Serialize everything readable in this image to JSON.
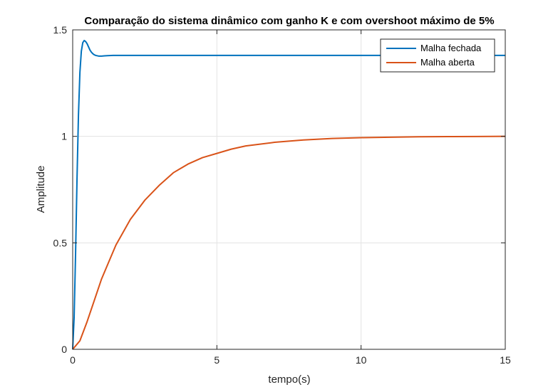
{
  "chart_data": {
    "type": "line",
    "title": "Comparação do sistema dinâmico com ganho K e com overshoot máximo de 5%",
    "xlabel": "tempo(s)",
    "ylabel": "Amplitude",
    "xlim": [
      0,
      15
    ],
    "ylim": [
      0,
      1.5
    ],
    "xticks": [
      0,
      5,
      10,
      15
    ],
    "xtick_labels": [
      "0",
      "5",
      "10",
      "15"
    ],
    "yticks": [
      0,
      0.5,
      1,
      1.5
    ],
    "ytick_labels": [
      "0",
      "0.5",
      "1",
      "1.5"
    ],
    "grid": true,
    "legend_position": "top-right",
    "series": [
      {
        "name": "Malha fechada",
        "color": "#0072BD",
        "x": [
          0,
          0.05,
          0.1,
          0.15,
          0.2,
          0.25,
          0.3,
          0.35,
          0.4,
          0.45,
          0.5,
          0.55,
          0.6,
          0.65,
          0.7,
          0.75,
          0.8,
          0.9,
          1.0,
          1.1,
          1.2,
          1.4,
          1.6,
          1.8,
          2.0,
          3,
          5,
          8,
          10,
          12,
          15
        ],
        "y": [
          0,
          0.15,
          0.45,
          0.8,
          1.1,
          1.3,
          1.4,
          1.44,
          1.45,
          1.445,
          1.435,
          1.42,
          1.405,
          1.395,
          1.388,
          1.383,
          1.38,
          1.377,
          1.377,
          1.378,
          1.379,
          1.38,
          1.38,
          1.38,
          1.38,
          1.38,
          1.38,
          1.38,
          1.38,
          1.38,
          1.38
        ]
      },
      {
        "name": "Malha aberta",
        "color": "#D95319",
        "x": [
          0,
          0.25,
          0.5,
          0.75,
          1.0,
          1.25,
          1.5,
          1.75,
          2.0,
          2.5,
          3.0,
          3.5,
          4.0,
          4.5,
          5.0,
          5.5,
          6.0,
          7.0,
          8.0,
          9.0,
          10.0,
          11.0,
          12.0,
          13.0,
          14.0,
          15.0
        ],
        "y": [
          0,
          0.04,
          0.13,
          0.23,
          0.33,
          0.41,
          0.49,
          0.55,
          0.61,
          0.7,
          0.77,
          0.83,
          0.87,
          0.9,
          0.92,
          0.94,
          0.955,
          0.972,
          0.983,
          0.99,
          0.994,
          0.996,
          0.998,
          0.999,
          0.9995,
          1.0
        ]
      }
    ]
  }
}
